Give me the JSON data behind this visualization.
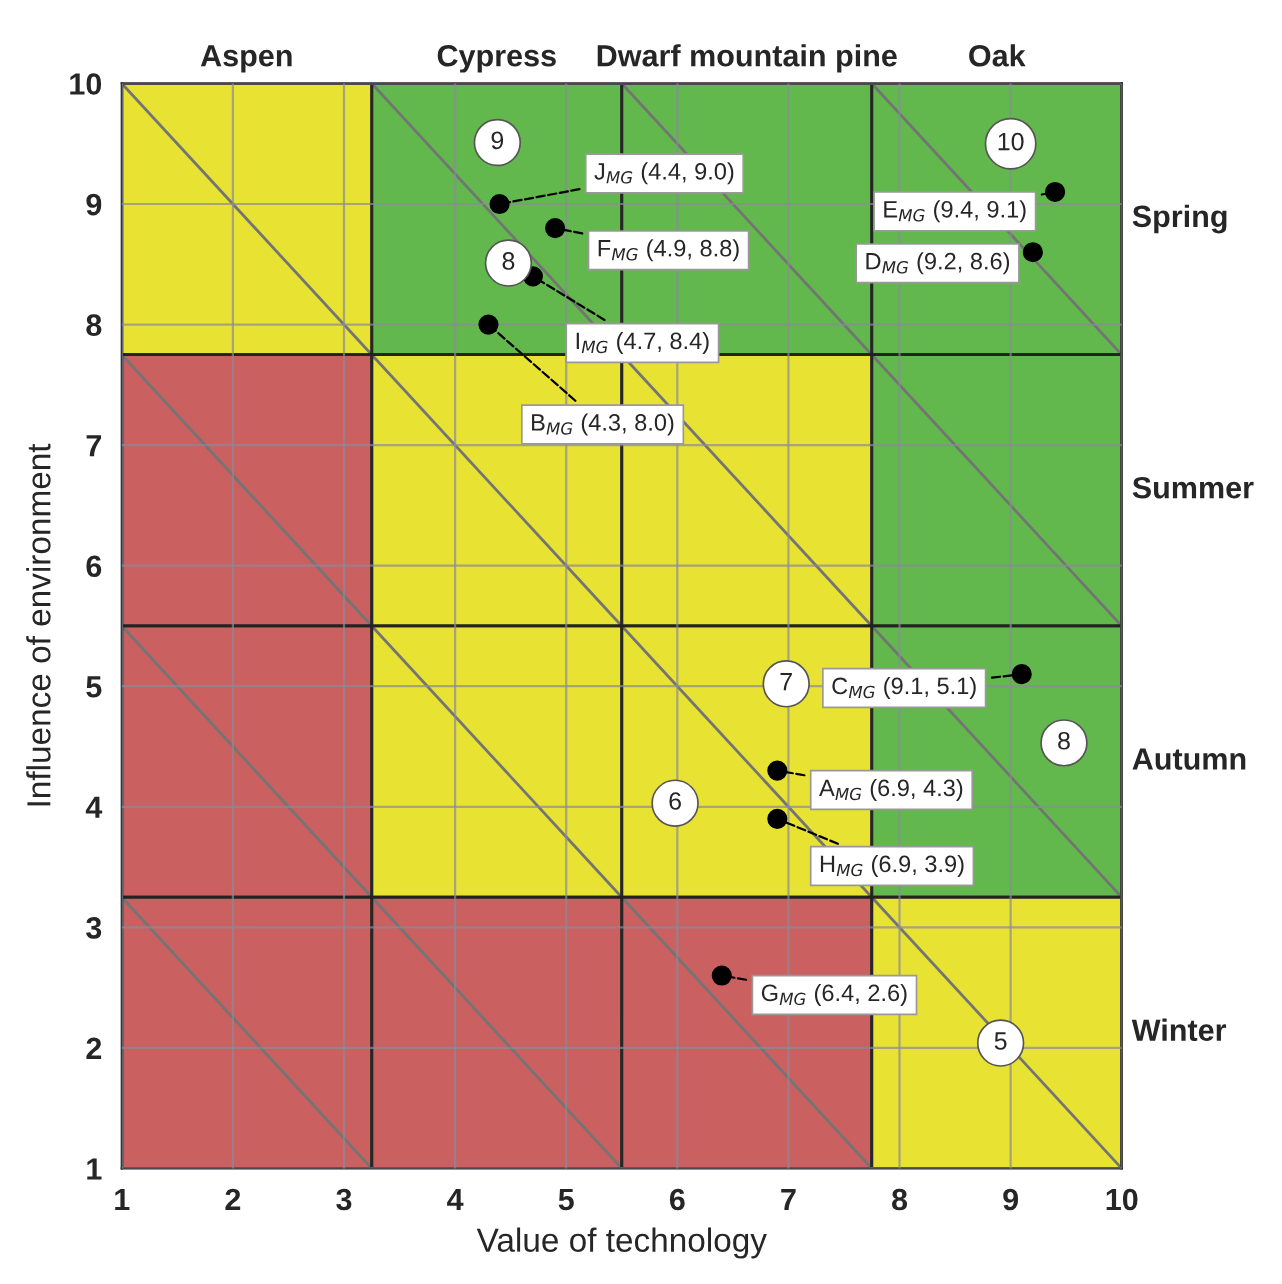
{
  "chart_data": {
    "type": "scatter",
    "xlabel": "Value of technology",
    "ylabel": "Influence of environment",
    "xlim": [
      1,
      10
    ],
    "ylim": [
      1,
      10
    ],
    "xticks": [
      1,
      2,
      3,
      4,
      5,
      6,
      7,
      8,
      9,
      10
    ],
    "yticks": [
      1,
      2,
      3,
      4,
      5,
      6,
      7,
      8,
      9,
      10
    ],
    "bands": [
      {
        "axis": "x",
        "from": 1,
        "to": 3.25,
        "label": "Aspen"
      },
      {
        "axis": "x",
        "from": 3.25,
        "to": 5.5,
        "label": "Cypress"
      },
      {
        "axis": "x",
        "from": 5.5,
        "to": 7.75,
        "label": "Dwarf mountain pine"
      },
      {
        "axis": "x",
        "from": 7.75,
        "to": 10,
        "label": "Oak"
      },
      {
        "axis": "y",
        "from": 7.75,
        "to": 10,
        "label": "Spring"
      },
      {
        "axis": "y",
        "from": 5.5,
        "to": 7.75,
        "label": "Summer"
      },
      {
        "axis": "y",
        "from": 3.25,
        "to": 5.5,
        "label": "Autumn"
      },
      {
        "axis": "y",
        "from": 1,
        "to": 3.25,
        "label": "Winter"
      }
    ],
    "series": [
      {
        "color": "#000000",
        "x": [
          4.4,
          4.9,
          4.7,
          4.3,
          9.4,
          9.2,
          9.1,
          6.9,
          6.9,
          6.4
        ],
        "values": [
          9.0,
          8.8,
          8.4,
          8.0,
          9.1,
          8.6,
          5.1,
          4.3,
          3.9,
          2.6
        ],
        "value_labels": [
          "J$_{MG}$ (4.4, 9.0)",
          "F$_{MG}$ (4.9, 8.8)",
          "I$_{MG}$ (4.7, 8.4)",
          "B$_{MG}$ (4.3, 8.0)",
          "E$_{MG}$ (9.4, 9.1)",
          "D$_{MG}$ (9.2, 8.6)",
          "C$_{MG}$ (9.1, 5.1)",
          "A$_{MG}$ (6.9, 4.3)",
          "H$_{MG}$ (6.9, 3.9)",
          "G$_{MG}$ (6.4, 2.6)"
        ]
      }
    ],
    "annotations": [
      {
        "text": "9",
        "x": 4.38,
        "y": 9.51
      },
      {
        "text": "10",
        "x": 9.0,
        "y": 9.5
      },
      {
        "text": "8",
        "x": 4.48,
        "y": 8.51
      },
      {
        "text": "7",
        "x": 6.98,
        "y": 5.02
      },
      {
        "text": "6",
        "x": 5.98,
        "y": 4.03
      },
      {
        "text": "8",
        "x": 9.48,
        "y": 4.53
      },
      {
        "text": "5",
        "x": 8.91,
        "y": 2.04
      }
    ],
    "marker": "circle",
    "grid": true,
    "legend": false
  }
}
